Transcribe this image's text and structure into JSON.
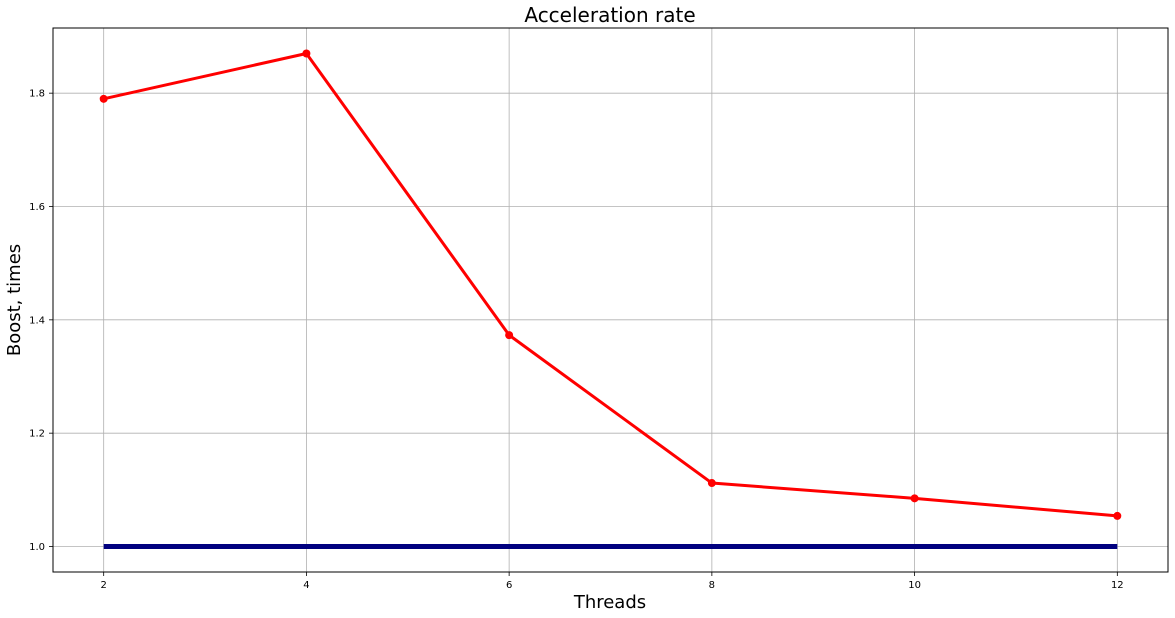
{
  "chart_data": {
    "type": "line",
    "title": "Acceleration rate",
    "xlabel": "Threads",
    "ylabel": "Boost, times",
    "xlim": [
      1.5,
      12.5
    ],
    "ylim": [
      0.955,
      1.915
    ],
    "xticks": [
      2,
      4,
      6,
      8,
      10,
      12
    ],
    "yticks": [
      1.0,
      1.2,
      1.4,
      1.6,
      1.8
    ],
    "grid": true,
    "series": [
      {
        "x": [
          2,
          4,
          6,
          8,
          10,
          12
        ],
        "values": [
          1.79,
          1.87,
          1.373,
          1.112,
          1.085,
          1.054
        ],
        "color": "#ff0000",
        "markers": true
      },
      {
        "x": [
          2,
          4,
          6,
          8,
          10,
          12
        ],
        "values": [
          1.0,
          1.0,
          1.0,
          1.0,
          1.0,
          1.0
        ],
        "color": "#00007f",
        "markers": false
      }
    ]
  }
}
